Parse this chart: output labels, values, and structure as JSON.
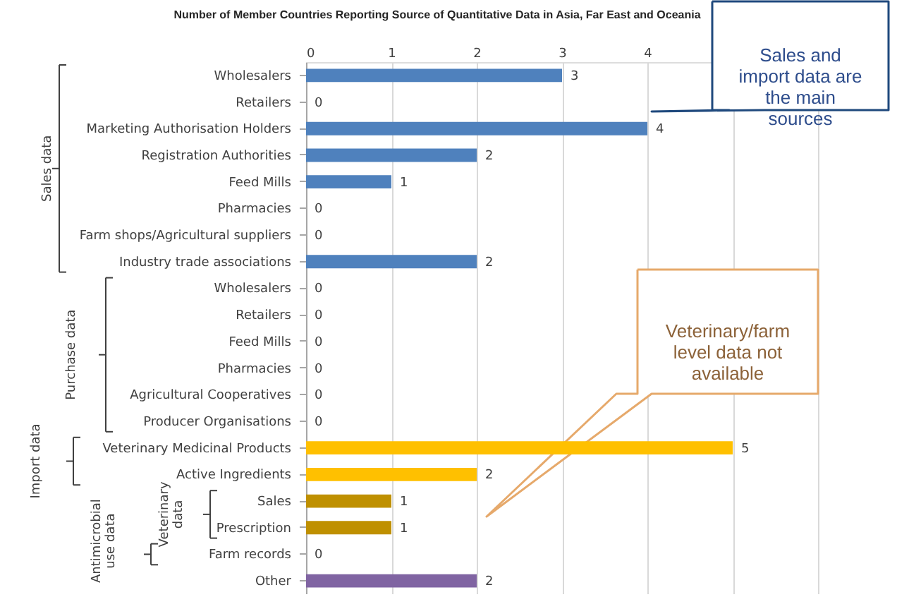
{
  "chart_data": {
    "type": "bar",
    "orientation": "horizontal",
    "title": "Number of Member Countries Reporting Source of Quantitative Data in Asia, Far East and Oceania",
    "categories": [
      "Wholesalers",
      "Retailers",
      "Marketing Authorisation Holders",
      "Registration Authorities",
      "Feed Mills",
      "Pharmacies",
      "Farm shops/Agricultural suppliers",
      "Industry trade associations",
      "Wholesalers",
      "Retailers",
      "Feed Mills",
      "Pharmacies",
      "Agricultural Cooperatives",
      "Producer Organisations",
      "Veterinary Medicinal Products",
      "Active Ingredients",
      "Sales",
      "Prescription",
      "Farm records",
      "Other"
    ],
    "values": [
      3,
      0,
      4,
      2,
      1,
      0,
      0,
      2,
      0,
      0,
      0,
      0,
      0,
      0,
      5,
      2,
      1,
      1,
      0,
      2
    ],
    "colors": [
      "#4f81bd",
      "#4f81bd",
      "#4f81bd",
      "#4f81bd",
      "#4f81bd",
      "#4f81bd",
      "#4f81bd",
      "#4f81bd",
      "#4f81bd",
      "#4f81bd",
      "#4f81bd",
      "#4f81bd",
      "#4f81bd",
      "#4f81bd",
      "#ffc000",
      "#ffc000",
      "#bf9000",
      "#bf9000",
      "#bf9000",
      "#8064a2"
    ],
    "xlim": [
      0,
      6
    ],
    "xticks": [
      0,
      1,
      2,
      3,
      4,
      {
        "value": 5,
        "label": null
      },
      {
        "value": 6,
        "label": null
      }
    ],
    "grid": "x",
    "data_labels": true,
    "annotations": [
      "Sales data",
      "Purchase data",
      "Import data",
      "Antimicrobial use data",
      "Veterinary data",
      "Sales and import data are the main sources",
      "Veterinary/farm level data not available"
    ]
  }
}
